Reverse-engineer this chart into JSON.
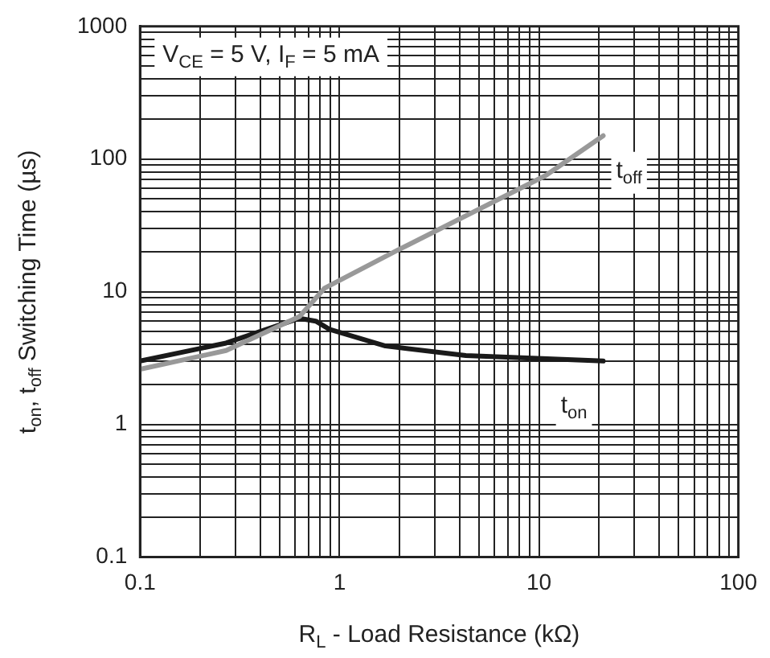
{
  "chart_data": {
    "type": "line",
    "xlabel": "R$_{L}$ - Load Resistance (kΩ)",
    "ylabel": "t$_{on}$, t$_{off}$ Switching Time (µs)",
    "log": "xy",
    "grid": true,
    "legend": false,
    "marker": "none",
    "line_style": "solid",
    "xlim": [
      0.1,
      100
    ],
    "ylim": [
      0.1,
      1000
    ],
    "xticks": [
      0.1,
      {
        "value": 0.2,
        "label": null
      },
      {
        "value": 0.3,
        "label": null
      },
      {
        "value": 0.4,
        "label": null
      },
      {
        "value": 0.5,
        "label": null
      },
      {
        "value": 0.6,
        "label": null
      },
      {
        "value": 0.7,
        "label": null
      },
      {
        "value": 0.8,
        "label": null
      },
      {
        "value": 0.9,
        "label": null
      },
      1,
      {
        "value": 2,
        "label": null
      },
      {
        "value": 3,
        "label": null
      },
      {
        "value": 4,
        "label": null
      },
      {
        "value": 5,
        "label": null
      },
      {
        "value": 6,
        "label": null
      },
      {
        "value": 7,
        "label": null
      },
      {
        "value": 8,
        "label": null
      },
      {
        "value": 9,
        "label": null
      },
      10,
      {
        "value": 20,
        "label": null
      },
      {
        "value": 30,
        "label": null
      },
      {
        "value": 40,
        "label": null
      },
      {
        "value": 50,
        "label": null
      },
      {
        "value": 60,
        "label": null
      },
      {
        "value": 70,
        "label": null
      },
      {
        "value": 80,
        "label": null
      },
      {
        "value": 90,
        "label": null
      },
      100
    ],
    "yticks": [
      0.1,
      {
        "value": 0.2,
        "label": null
      },
      {
        "value": 0.3,
        "label": null
      },
      {
        "value": 0.4,
        "label": null
      },
      {
        "value": 0.5,
        "label": null
      },
      {
        "value": 0.6,
        "label": null
      },
      {
        "value": 0.7,
        "label": null
      },
      {
        "value": 0.8,
        "label": null
      },
      {
        "value": 0.9,
        "label": null
      },
      1,
      {
        "value": 2,
        "label": null
      },
      {
        "value": 3,
        "label": null
      },
      {
        "value": 4,
        "label": null
      },
      {
        "value": 5,
        "label": null
      },
      {
        "value": 6,
        "label": null
      },
      {
        "value": 7,
        "label": null
      },
      {
        "value": 8,
        "label": null
      },
      {
        "value": 9,
        "label": null
      },
      10,
      {
        "value": 20,
        "label": null
      },
      {
        "value": 30,
        "label": null
      },
      {
        "value": 40,
        "label": null
      },
      {
        "value": 50,
        "label": null
      },
      {
        "value": 60,
        "label": null
      },
      {
        "value": 70,
        "label": null
      },
      {
        "value": 80,
        "label": null
      },
      {
        "value": 90,
        "label": null
      },
      100,
      {
        "value": 200,
        "label": null
      },
      {
        "value": 300,
        "label": null
      },
      {
        "value": 400,
        "label": null
      },
      {
        "value": 500,
        "label": null
      },
      {
        "value": 600,
        "label": null
      },
      {
        "value": 700,
        "label": null
      },
      {
        "value": 800,
        "label": null
      },
      {
        "value": 900,
        "label": null
      },
      1000
    ],
    "annotations": [
      "V$_{CE}$ = 5 V, I$_{F}$ = 5 mA"
    ],
    "series": [
      {
        "name": "t$_{off}$",
        "color": "#999999",
        "x": [
          0.1,
          0.27,
          0.63,
          0.84,
          1.95,
          10.8,
          21
        ],
        "values": [
          2.6,
          3.6,
          6.5,
          10.6,
          20.5,
          75,
          150
        ]
      },
      {
        "name": "t$_{on}$",
        "color": "#1a1a1a",
        "x": [
          0.1,
          0.27,
          0.63,
          0.76,
          0.89,
          1.7,
          4.3,
          21
        ],
        "values": [
          3.0,
          4.1,
          6.3,
          6.0,
          5.2,
          3.9,
          3.3,
          3.0
        ]
      }
    ]
  }
}
